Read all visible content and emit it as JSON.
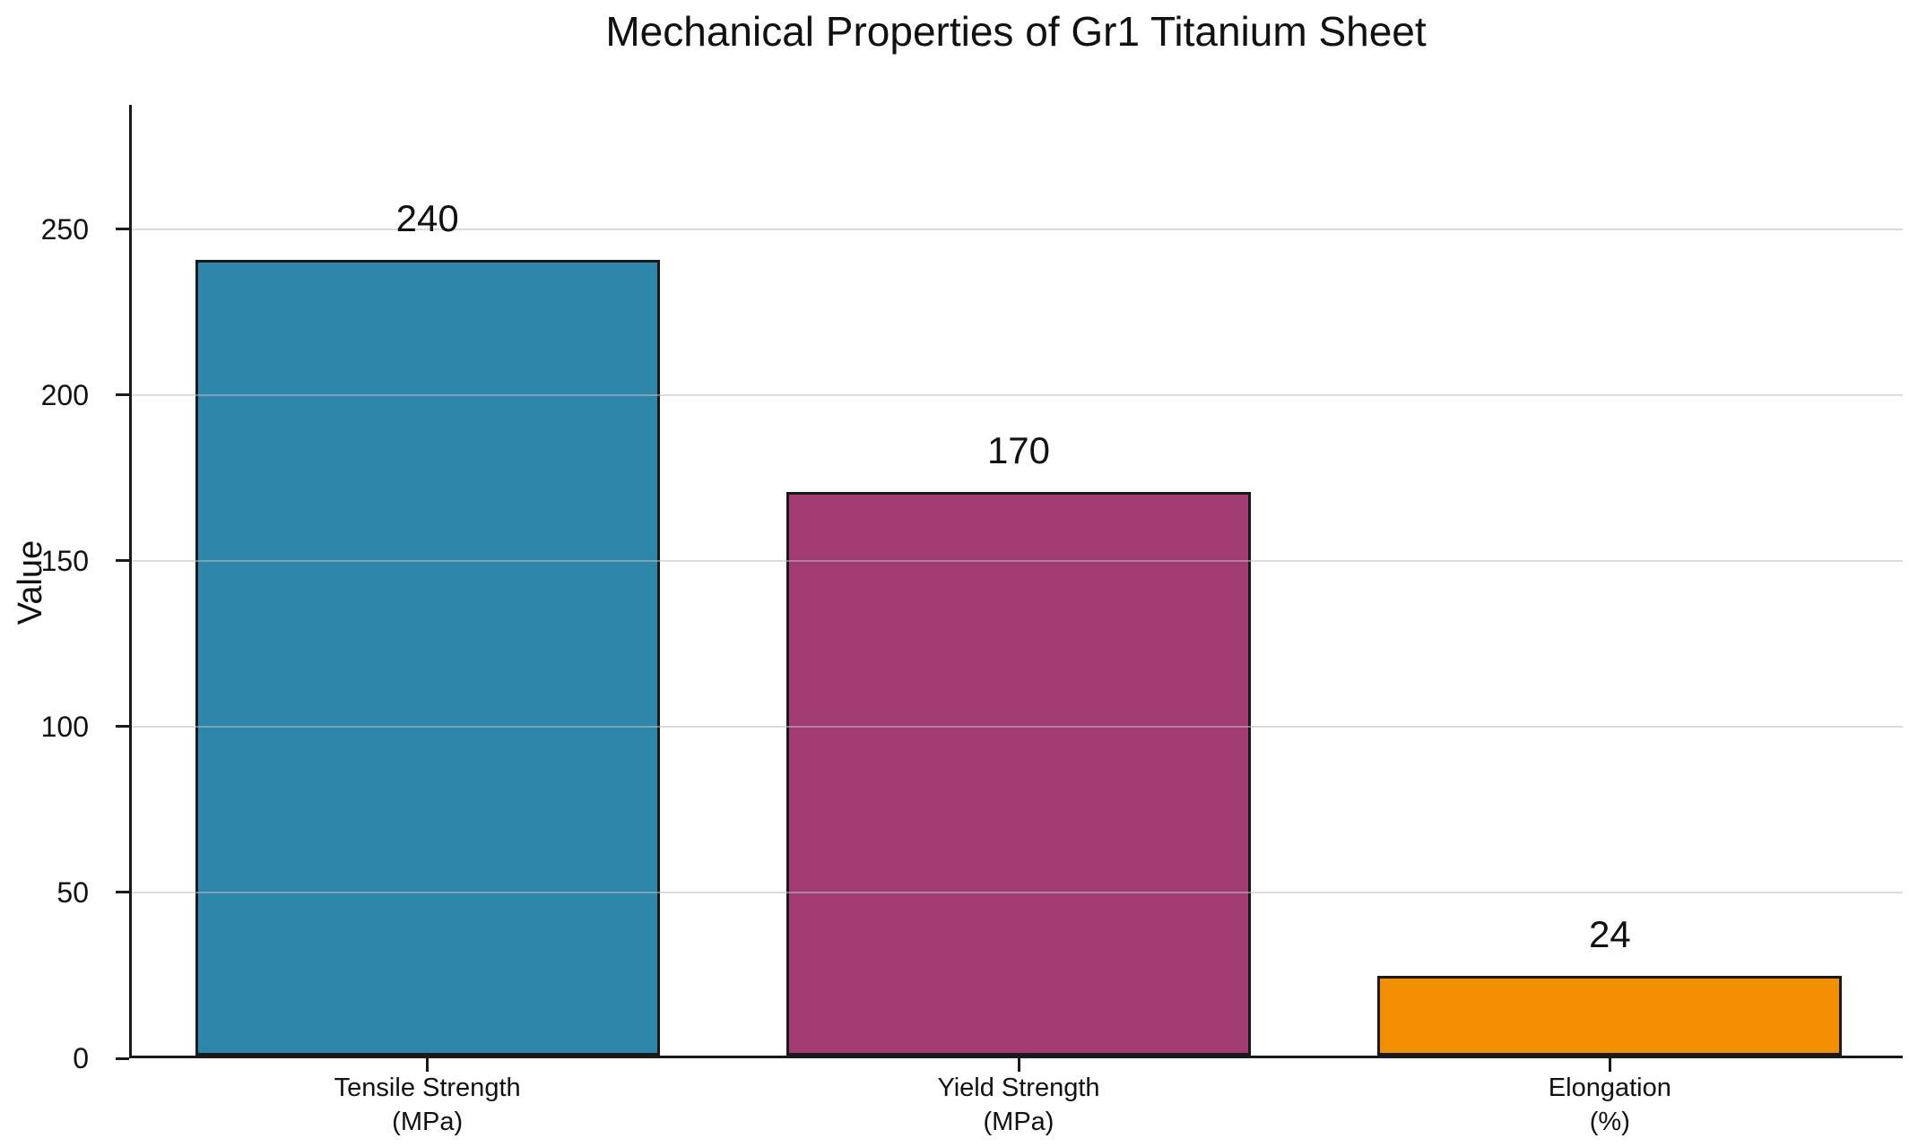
{
  "chart_data": {
    "type": "bar",
    "title": "Mechanical Properties of Gr1 Titanium Sheet",
    "xlabel": "",
    "ylabel": "Value",
    "categories": [
      "Tensile Strength\n(MPa)",
      "Yield Strength\n(MPa)",
      "Elongation\n(%)"
    ],
    "values": [
      240,
      170,
      24
    ],
    "value_labels": [
      "240",
      "170",
      "24"
    ],
    "bar_names": [
      "tensile-strength",
      "yield-strength",
      "elongation"
    ],
    "bar_colors": [
      "#2E86AB",
      "#A23B72",
      "#F18F01"
    ],
    "bar_edge_color": "#1a1a1a",
    "yticks": [
      0,
      50,
      100,
      150,
      200,
      250
    ],
    "ylim": [
      0,
      287.5
    ],
    "grid": true,
    "grid_color": "rgba(190,190,190,0.55)",
    "legend": "none"
  }
}
